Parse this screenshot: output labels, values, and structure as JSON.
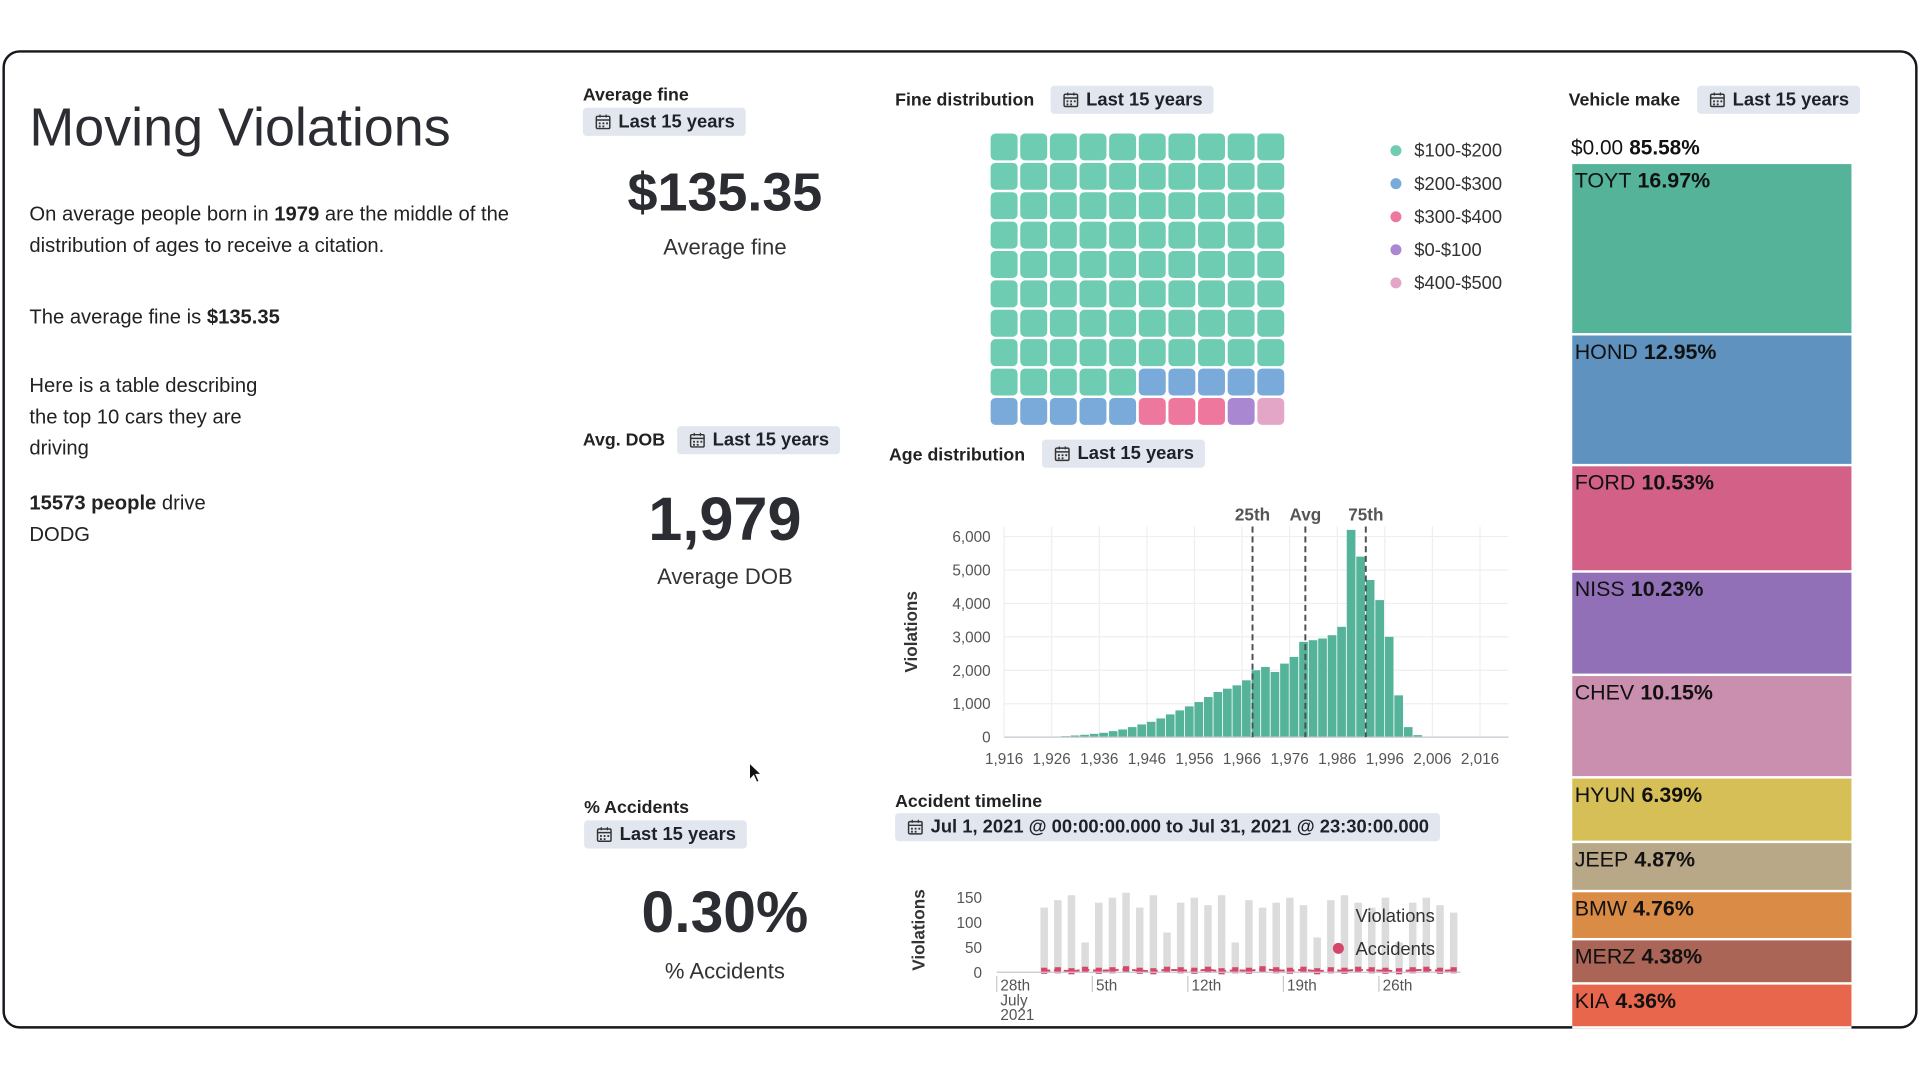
{
  "title": "Moving Violations",
  "paragraphs": [
    [
      {
        "text": "On average people born in "
      },
      {
        "text": "1979",
        "bold": true
      },
      {
        "text": " are the middle of the distribution of ages to receive a citation."
      }
    ],
    [
      {
        "text": "The average fine is "
      },
      {
        "text": "$135.35",
        "bold": true
      }
    ],
    [
      {
        "text": "Here is a table describing the top 10 cars they are driving"
      }
    ],
    [
      {
        "text": "15573 people",
        "bold": true
      },
      {
        "text": " drive DODG"
      }
    ]
  ],
  "metrics": [
    {
      "title": "Average fine",
      "time_range": "Last 15 years",
      "value": "$135.35",
      "label": "Average fine"
    },
    {
      "title": "Avg. DOB",
      "time_range": "Last 15 years",
      "value": "1,979",
      "label": "Average DOB"
    },
    {
      "title": "% Accidents",
      "time_range": "Last 15 years",
      "value": "0.30%",
      "label": "% Accidents"
    }
  ],
  "chart_data": [
    {
      "type": "waffle",
      "title": "Fine distribution",
      "time_range": "Last 15 years",
      "categories": [
        "$100-$200",
        "$200-$300",
        "$300-$400",
        "$0-$100",
        "$400-$500"
      ],
      "values": [
        85,
        10,
        3,
        1,
        1
      ],
      "colors": [
        "#6dccb1",
        "#79aad9",
        "#ee789d",
        "#a987d1",
        "#e4a6c7"
      ]
    },
    {
      "type": "histogram",
      "title": "Age distribution",
      "time_range": "Last 15 years",
      "ylabel": "Violations",
      "color": "#54b399",
      "grid": true,
      "bins": [
        1916,
        1918,
        1920,
        1922,
        1924,
        1926,
        1928,
        1930,
        1932,
        1934,
        1936,
        1938,
        1940,
        1942,
        1944,
        1946,
        1948,
        1950,
        1952,
        1954,
        1956,
        1958,
        1960,
        1962,
        1964,
        1966,
        1968,
        1970,
        1972,
        1974,
        1976,
        1978,
        1980,
        1982,
        1984,
        1986,
        1988,
        1990,
        1992,
        1994,
        1996,
        1998,
        2000,
        2002,
        2004,
        2006
      ],
      "values": [
        0,
        0,
        5,
        10,
        15,
        20,
        30,
        50,
        70,
        100,
        130,
        180,
        230,
        300,
        380,
        460,
        560,
        680,
        800,
        920,
        1050,
        1200,
        1350,
        1450,
        1550,
        1700,
        2000,
        2100,
        1950,
        2200,
        2400,
        2850,
        2900,
        2950,
        3050,
        3300,
        6200,
        5400,
        4700,
        4100,
        3000,
        1250,
        300,
        60,
        10
      ],
      "xlim": [
        1916,
        2022
      ],
      "xticks": [
        {
          "value": 1916,
          "label": "1,916"
        },
        {
          "value": 1926,
          "label": "1,926"
        },
        {
          "value": 1936,
          "label": "1,936"
        },
        {
          "value": 1946,
          "label": "1,946"
        },
        {
          "value": 1956,
          "label": "1,956"
        },
        {
          "value": 1966,
          "label": "1,966"
        },
        {
          "value": 1976,
          "label": "1,976"
        },
        {
          "value": 1986,
          "label": "1,986"
        },
        {
          "value": 1996,
          "label": "1,996"
        },
        {
          "value": 2006,
          "label": "2,006"
        },
        {
          "value": 2016,
          "label": "2,016"
        }
      ],
      "ylim": [
        0,
        6300
      ],
      "yticks": [
        0,
        {
          "value": 1000,
          "label": "1,000"
        },
        {
          "value": 2000,
          "label": "2,000"
        },
        {
          "value": 3000,
          "label": "3,000"
        },
        {
          "value": 4000,
          "label": "4,000"
        },
        {
          "value": 5000,
          "label": "5,000"
        },
        {
          "value": 6000,
          "label": "6,000"
        }
      ],
      "annotations": [
        {
          "label": "25th",
          "x": 1968.2
        },
        {
          "label": "Avg",
          "x": 1979.3
        },
        {
          "label": "75th",
          "x": 1992
        }
      ]
    },
    {
      "type": "bar",
      "title": "Accident timeline",
      "range_label": "Jul 1, 2021 @ 00:00:00.000 to Jul 31, 2021 @ 23:30:00.000",
      "ylabel": "Violations",
      "x": [
        "2021-07-01",
        "2021-07-02",
        "2021-07-03",
        "2021-07-04",
        "2021-07-05",
        "2021-07-06",
        "2021-07-07",
        "2021-07-08",
        "2021-07-09",
        "2021-07-10",
        "2021-07-11",
        "2021-07-12",
        "2021-07-13",
        "2021-07-14",
        "2021-07-15",
        "2021-07-16",
        "2021-07-17",
        "2021-07-18",
        "2021-07-19",
        "2021-07-20",
        "2021-07-21",
        "2021-07-22",
        "2021-07-23",
        "2021-07-24",
        "2021-07-25",
        "2021-07-26",
        "2021-07-27",
        "2021-07-28",
        "2021-07-29",
        "2021-07-30",
        "2021-07-31"
      ],
      "series": [
        {
          "name": "Violations",
          "color": "#dcdcdc",
          "values": [
            130,
            145,
            155,
            60,
            140,
            150,
            160,
            130,
            155,
            80,
            140,
            150,
            135,
            155,
            60,
            145,
            130,
            140,
            150,
            135,
            70,
            145,
            155,
            140,
            130,
            150,
            60,
            140,
            150,
            135,
            120
          ]
        },
        {
          "name": "Accidents",
          "color": "#d6466b",
          "values": [
            3,
            4,
            2,
            5,
            3,
            4,
            6,
            3,
            2,
            5,
            4,
            3,
            5,
            2,
            4,
            3,
            6,
            4,
            3,
            5,
            2,
            4,
            3,
            5,
            4,
            3,
            2,
            4,
            5,
            3,
            4
          ]
        }
      ],
      "xlim": [
        "2021-06-28",
        "2021-08-01"
      ],
      "xticks": [
        {
          "value": "2021-06-28",
          "label": "28th"
        },
        {
          "value": "2021-07-05",
          "label": "5th"
        },
        {
          "value": "2021-07-12",
          "label": "12th"
        },
        {
          "value": "2021-07-19",
          "label": "19th"
        },
        {
          "value": "2021-07-26",
          "label": "26th"
        }
      ],
      "xtick_sublabels": [
        "July",
        "2021"
      ],
      "ylim": [
        0,
        170
      ],
      "yticks": [
        0,
        50,
        100,
        150
      ]
    },
    {
      "type": "treemap",
      "title": "Vehicle make",
      "time_range": "Last 15 years",
      "group": {
        "name": "$0.00",
        "value": 85.58,
        "value_label": "85.58%"
      },
      "categories": [
        "TOYT",
        "HOND",
        "FORD",
        "NISS",
        "CHEV",
        "HYUN",
        "JEEP",
        "BMW",
        "MERZ",
        "KIA"
      ],
      "values": [
        16.97,
        12.95,
        10.53,
        10.23,
        10.15,
        6.39,
        4.87,
        4.76,
        4.38,
        4.36
      ],
      "value_labels": [
        "16.97%",
        "12.95%",
        "10.53%",
        "10.23%",
        "10.15%",
        "6.39%",
        "4.87%",
        "4.76%",
        "4.38%",
        "4.36%"
      ],
      "colors": [
        "#54b399",
        "#6092c0",
        "#d36086",
        "#9170b8",
        "#ca8eae",
        "#d6bf57",
        "#b9a888",
        "#da8b45",
        "#aa6556",
        "#e7664c"
      ]
    }
  ]
}
